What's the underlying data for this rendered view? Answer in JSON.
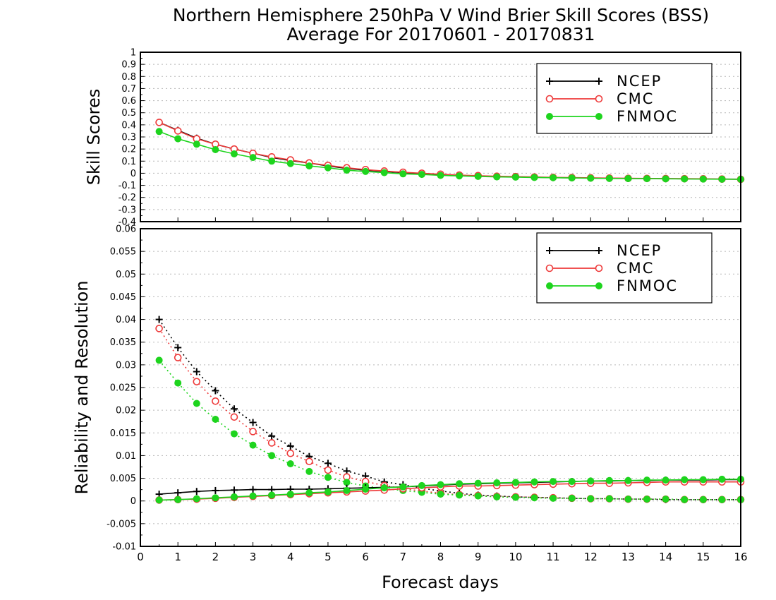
{
  "title": {
    "line1": "Northern Hemisphere 250hPa V Wind Brier Skill Scores (BSS)",
    "line2": "Average For 20170601 - 20170831"
  },
  "colors": {
    "NCEP": "#000000",
    "CMC": "#ee3a3a",
    "FNMOC": "#1ed41e",
    "grid": "#b8b8b8"
  },
  "chart_data": [
    {
      "type": "line",
      "ylabel": "Skill Scores",
      "xlim": [
        0,
        16
      ],
      "ylim": [
        -0.4,
        1
      ],
      "yticks": [
        "1",
        "0.9",
        "0.8",
        "0.7",
        "0.6",
        "0.5",
        "0.4",
        "0.3",
        "0.2",
        "0.1",
        "0",
        "-0.1",
        "-0.2",
        "-0.3",
        "-0.4"
      ],
      "grid": true,
      "legend": "top-right",
      "x": [
        0.5,
        1,
        1.5,
        2,
        2.5,
        3,
        3.5,
        4,
        4.5,
        5,
        5.5,
        6,
        6.5,
        7,
        7.5,
        8,
        8.5,
        9,
        9.5,
        10,
        10.5,
        11,
        11.5,
        12,
        12.5,
        13,
        13.5,
        14,
        14.5,
        15,
        15.5,
        16
      ],
      "series": [
        {
          "name": "NCEP",
          "marker": "plus",
          "style": "solid",
          "values": [
            0.42,
            0.355,
            0.29,
            0.24,
            0.2,
            0.165,
            0.13,
            0.105,
            0.085,
            0.06,
            0.04,
            0.025,
            0.015,
            0.005,
            -0.005,
            -0.012,
            -0.018,
            -0.022,
            -0.028,
            -0.03,
            -0.033,
            -0.036,
            -0.038,
            -0.04,
            -0.042,
            -0.043,
            -0.044,
            -0.045,
            -0.046,
            -0.047,
            -0.048,
            -0.049
          ]
        },
        {
          "name": "CMC",
          "marker": "open-circle",
          "style": "solid",
          "values": [
            0.42,
            0.35,
            0.285,
            0.24,
            0.2,
            0.165,
            0.135,
            0.11,
            0.085,
            0.065,
            0.045,
            0.03,
            0.018,
            0.008,
            0.0,
            -0.008,
            -0.015,
            -0.02,
            -0.025,
            -0.028,
            -0.031,
            -0.034,
            -0.036,
            -0.038,
            -0.04,
            -0.042,
            -0.043,
            -0.044,
            -0.045,
            -0.046,
            -0.048,
            -0.05
          ]
        },
        {
          "name": "FNMOC",
          "marker": "filled-circle",
          "style": "solid",
          "values": [
            0.345,
            0.285,
            0.24,
            0.195,
            0.16,
            0.13,
            0.1,
            0.08,
            0.06,
            0.045,
            0.025,
            0.015,
            0.005,
            -0.005,
            -0.01,
            -0.018,
            -0.022,
            -0.026,
            -0.03,
            -0.032,
            -0.035,
            -0.037,
            -0.039,
            -0.041,
            -0.043,
            -0.044,
            -0.045,
            -0.046,
            -0.047,
            -0.048,
            -0.049,
            -0.05
          ]
        }
      ]
    },
    {
      "type": "line",
      "ylabel": "Reliability and Resolution",
      "xlabel": "Forecast days",
      "xlim": [
        0,
        16
      ],
      "xticks": [
        "0",
        "1",
        "2",
        "3",
        "4",
        "5",
        "6",
        "7",
        "8",
        "9",
        "10",
        "11",
        "12",
        "13",
        "14",
        "15",
        "16"
      ],
      "ylim": [
        -0.01,
        0.06
      ],
      "yticks": [
        "0.06",
        "0.055",
        "0.05",
        "0.045",
        "0.04",
        "0.035",
        "0.03",
        "0.025",
        "0.02",
        "0.015",
        "0.01",
        "0.005",
        "0",
        "-0.005",
        "-0.01"
      ],
      "grid": true,
      "legend": "top-right",
      "x": [
        0.5,
        1,
        1.5,
        2,
        2.5,
        3,
        3.5,
        4,
        4.5,
        5,
        5.5,
        6,
        6.5,
        7,
        7.5,
        8,
        8.5,
        9,
        9.5,
        10,
        10.5,
        11,
        11.5,
        12,
        12.5,
        13,
        13.5,
        14,
        14.5,
        15,
        15.5,
        16
      ],
      "series": [
        {
          "name": "NCEP",
          "marker": "plus",
          "style": "dotted",
          "role": "reliability",
          "values": [
            0.04,
            0.0338,
            0.0285,
            0.0243,
            0.0203,
            0.0173,
            0.0143,
            0.0121,
            0.0098,
            0.0083,
            0.0066,
            0.0055,
            0.0042,
            0.0036,
            0.0028,
            0.0022,
            0.0017,
            0.0013,
            0.0011,
            0.0009,
            0.0008,
            0.0007,
            0.0006,
            0.0005,
            0.0005,
            0.0004,
            0.0004,
            0.0003,
            0.0003,
            0.0003,
            0.0003,
            0.0003
          ]
        },
        {
          "name": "CMC",
          "marker": "open-circle",
          "style": "dotted",
          "role": "reliability",
          "values": [
            0.038,
            0.0316,
            0.0263,
            0.022,
            0.0185,
            0.0153,
            0.0128,
            0.0105,
            0.0087,
            0.0068,
            0.0053,
            0.0043,
            0.0034,
            0.0027,
            0.0022,
            0.0017,
            0.0014,
            0.0012,
            0.001,
            0.0009,
            0.0008,
            0.0007,
            0.0006,
            0.0005,
            0.0005,
            0.0004,
            0.0004,
            0.0004,
            0.0003,
            0.0003,
            0.0003,
            0.0003
          ]
        },
        {
          "name": "FNMOC",
          "marker": "filled-circle",
          "style": "dotted",
          "role": "reliability",
          "values": [
            0.031,
            0.026,
            0.0215,
            0.018,
            0.0148,
            0.0123,
            0.01,
            0.0082,
            0.0065,
            0.0052,
            0.0041,
            0.0033,
            0.0027,
            0.0023,
            0.0019,
            0.0015,
            0.0013,
            0.0011,
            0.0009,
            0.0008,
            0.0007,
            0.0006,
            0.0006,
            0.0005,
            0.0005,
            0.0004,
            0.0004,
            0.0004,
            0.0003,
            0.0003,
            0.0003,
            0.0003
          ]
        },
        {
          "name": "NCEP",
          "marker": "plus",
          "style": "solid",
          "role": "resolution",
          "values": [
            0.0015,
            0.0018,
            0.0021,
            0.0023,
            0.0024,
            0.0025,
            0.0025,
            0.0026,
            0.0026,
            0.0027,
            0.0028,
            0.0029,
            0.003,
            0.0031,
            0.0033,
            0.0035,
            0.0037,
            0.0038,
            0.0039,
            0.004,
            0.0041,
            0.0042,
            0.0043,
            0.0044,
            0.0044,
            0.0045,
            0.0045,
            0.0046,
            0.0046,
            0.0046,
            0.0047,
            0.0047
          ]
        },
        {
          "name": "CMC",
          "marker": "open-circle",
          "style": "solid",
          "role": "resolution",
          "values": [
            0.0002,
            0.0003,
            0.0004,
            0.0006,
            0.0008,
            0.001,
            0.0012,
            0.0014,
            0.0016,
            0.0018,
            0.002,
            0.0022,
            0.0024,
            0.0027,
            0.0029,
            0.0031,
            0.0033,
            0.0033,
            0.0034,
            0.0035,
            0.0036,
            0.0037,
            0.0038,
            0.0039,
            0.0039,
            0.004,
            0.0041,
            0.0042,
            0.0042,
            0.0042,
            0.0042,
            0.0042
          ]
        },
        {
          "name": "FNMOC",
          "marker": "filled-circle",
          "style": "solid",
          "role": "resolution",
          "values": [
            0.0002,
            0.0003,
            0.0005,
            0.0007,
            0.0009,
            0.0011,
            0.0013,
            0.0015,
            0.0018,
            0.002,
            0.0023,
            0.0026,
            0.0029,
            0.0031,
            0.0034,
            0.0036,
            0.0038,
            0.0039,
            0.004,
            0.0041,
            0.0042,
            0.0043,
            0.0043,
            0.0044,
            0.0045,
            0.0045,
            0.0046,
            0.0046,
            0.0047,
            0.0047,
            0.0048,
            0.0048
          ]
        }
      ]
    }
  ]
}
